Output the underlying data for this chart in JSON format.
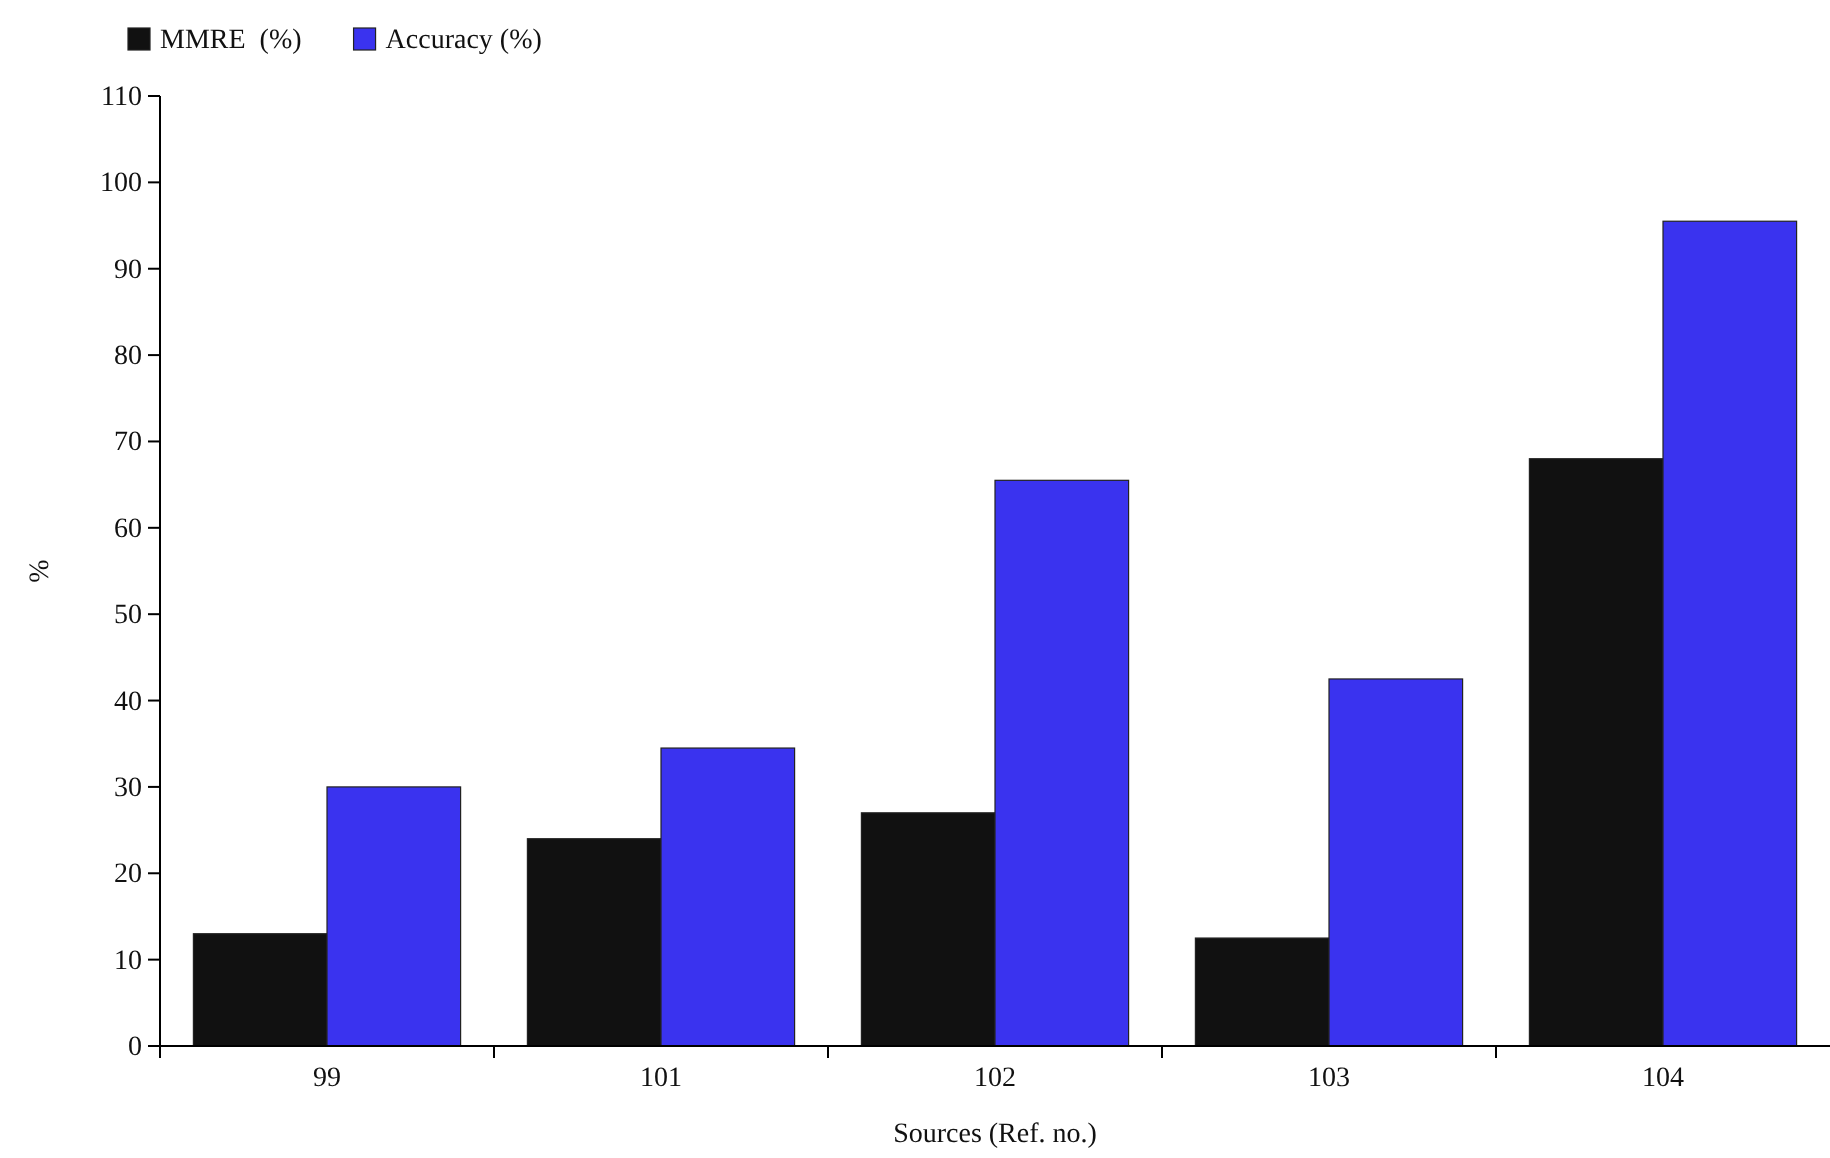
{
  "chart_data": {
    "type": "bar",
    "xlabel": "Sources (Ref. no.)",
    "ylabel": "%",
    "categories": [
      "99",
      "101",
      "102",
      "103",
      "104"
    ],
    "series": [
      {
        "name": "MMRE  (%)",
        "color": "#111111",
        "values": [
          13,
          24,
          27,
          12.5,
          68
        ]
      },
      {
        "name": "Accuracy (%)",
        "color": "#3a33ef",
        "values": [
          30,
          34.5,
          65.5,
          42.5,
          95.5
        ]
      }
    ],
    "ylim": [
      0,
      110
    ],
    "yticks": [
      0,
      10,
      20,
      30,
      40,
      50,
      60,
      70,
      80,
      90,
      100,
      110
    ],
    "legend": "top left",
    "grid": false
  }
}
